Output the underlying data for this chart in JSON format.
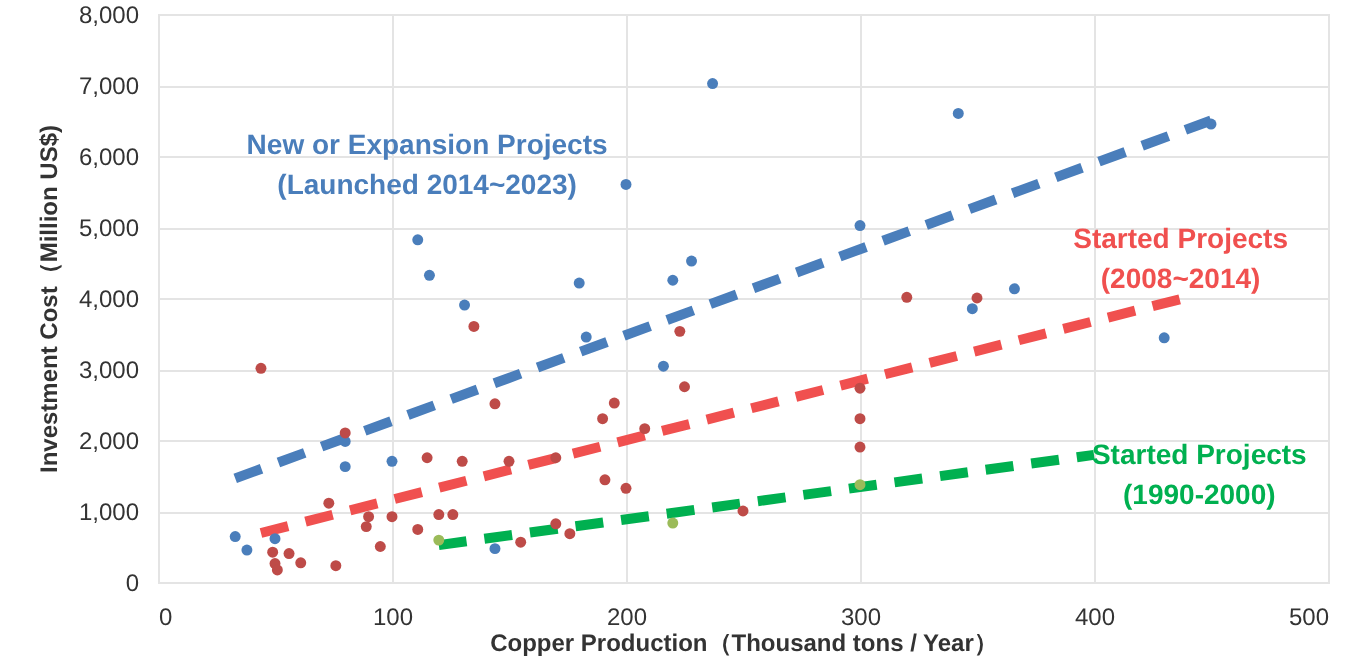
{
  "chart_data": {
    "type": "scatter",
    "xlabel": "Copper Production（Thousand tons / Year）",
    "ylabel": "Investment Cost（Million US$)",
    "xlim": [
      0,
      500
    ],
    "xticks": [
      0,
      100,
      200,
      300,
      400,
      500
    ],
    "ylim": [
      0,
      8000
    ],
    "yticks": [
      {
        "value": 0,
        "label": "0"
      },
      {
        "value": 1000,
        "label": "1,000"
      },
      {
        "value": 2000,
        "label": "2,000"
      },
      {
        "value": 3000,
        "label": "3,000"
      },
      {
        "value": 4000,
        "label": "4,000"
      },
      {
        "value": 5000,
        "label": "5,000"
      },
      {
        "value": 6000,
        "label": "6,000"
      },
      {
        "value": 7000,
        "label": "7,000"
      },
      {
        "value": 8000,
        "label": "8,000"
      }
    ],
    "grid": true,
    "series": [
      {
        "type": "line",
        "line_style": "dashed",
        "color": "#4a7ebb",
        "x": [
          33,
          450
        ],
        "values": [
          1460,
          6500
        ]
      },
      {
        "type": "line",
        "line_style": "dashed",
        "color": "#f0504f",
        "x": [
          44,
          440
        ],
        "values": [
          690,
          4010
        ]
      },
      {
        "type": "line",
        "line_style": "dashed",
        "color": "#00b050",
        "x": [
          120,
          400
        ],
        "values": [
          520,
          1790
        ]
      },
      {
        "marker": "circle",
        "color": "#4a7ebb",
        "x": [
          33,
          38,
          50,
          80,
          80,
          100,
          111,
          116,
          131,
          144,
          180,
          183,
          200,
          216,
          220,
          228,
          237,
          300,
          342,
          348,
          366,
          430,
          450
        ],
        "values": [
          640,
          450,
          610,
          1625,
          1980,
          1700,
          4820,
          4320,
          3900,
          470,
          4210,
          3450,
          5600,
          3040,
          4250,
          4520,
          7020,
          5020,
          6600,
          3850,
          4130,
          3440,
          6450
        ]
      },
      {
        "marker": "circle",
        "color": "#be4b48",
        "x": [
          44,
          49,
          50,
          51,
          56,
          61,
          73,
          76,
          80,
          89,
          90,
          95,
          100,
          111,
          115,
          120,
          126,
          130,
          135,
          144,
          150,
          155,
          170,
          170,
          176,
          190,
          191,
          195,
          200,
          208,
          223,
          225,
          250,
          300,
          300,
          300,
          320,
          350
        ],
        "values": [
          3010,
          420,
          260,
          170,
          400,
          270,
          1110,
          230,
          2100,
          780,
          920,
          500,
          920,
          740,
          1750,
          950,
          950,
          1700,
          3600,
          2510,
          1700,
          560,
          1750,
          820,
          680,
          2300,
          1440,
          2520,
          1320,
          2160,
          3530,
          2750,
          1000,
          2730,
          2300,
          1900,
          4010,
          4000
        ]
      },
      {
        "marker": "circle",
        "color": "#9bbb59",
        "x": [
          120,
          220,
          300
        ],
        "values": [
          590,
          830,
          1370
        ]
      }
    ],
    "annotations": [
      "New or Expansion Projects\n(Launched 2014~2023)",
      "Started Projects\n(2008~2014)",
      "Started Projects\n(1990-2000)"
    ]
  }
}
